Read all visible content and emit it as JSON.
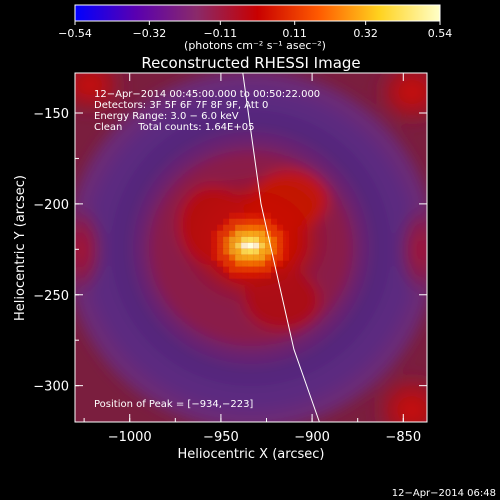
{
  "chart_data": {
    "type": "heatmap",
    "title": "Reconstructed RHESSI Image",
    "xlabel": "Heliocentric X (arcsec)",
    "ylabel": "Heliocentric Y (arcsec)",
    "xlim": [
      -1030,
      -837
    ],
    "ylim": [
      -320,
      -128
    ],
    "x_ticks": [
      -1000,
      -950,
      -900,
      -850
    ],
    "x_tick_labels": [
      "−1000",
      "−950",
      "−900",
      "−850"
    ],
    "y_ticks": [
      -150,
      -200,
      -250,
      -300
    ],
    "y_tick_labels": [
      "−150",
      "−200",
      "−250",
      "−300"
    ],
    "colorbar": {
      "min": -0.54,
      "max": 0.54,
      "ticks": [
        -0.54,
        -0.32,
        -0.11,
        0.11,
        0.32,
        0.54
      ],
      "tick_labels": [
        "−0.54",
        "−0.32",
        "−0.11",
        "0.11",
        "0.32",
        "0.54"
      ],
      "units_label": "(photons cm⁻² s⁻¹ asec⁻²)",
      "colors": [
        "#0000ff",
        "#5a00b0",
        "#8a2a6a",
        "#c80000",
        "#ff5a00",
        "#ffd21e",
        "#ffffc8"
      ]
    },
    "annotations": [
      "12−Apr−2014 00:45:00.000 to 00:50:22.000",
      "Detectors: 3F 5F 6F 7F 8F 9F, Att 0",
      "Energy Range: 3.0 − 6.0 keV",
      "Clean     Total counts: 1.64E+05"
    ],
    "peak_label": "Position of Peak = [−934,−223]",
    "peak": {
      "x": -934,
      "y": -223
    },
    "limb_line": [
      {
        "x": -938,
        "y": -128
      },
      {
        "x": -928,
        "y": -200
      },
      {
        "x": -910,
        "y": -280
      },
      {
        "x": -896,
        "y": -320
      }
    ],
    "footer_date": "12−Apr−2014 06:48"
  }
}
